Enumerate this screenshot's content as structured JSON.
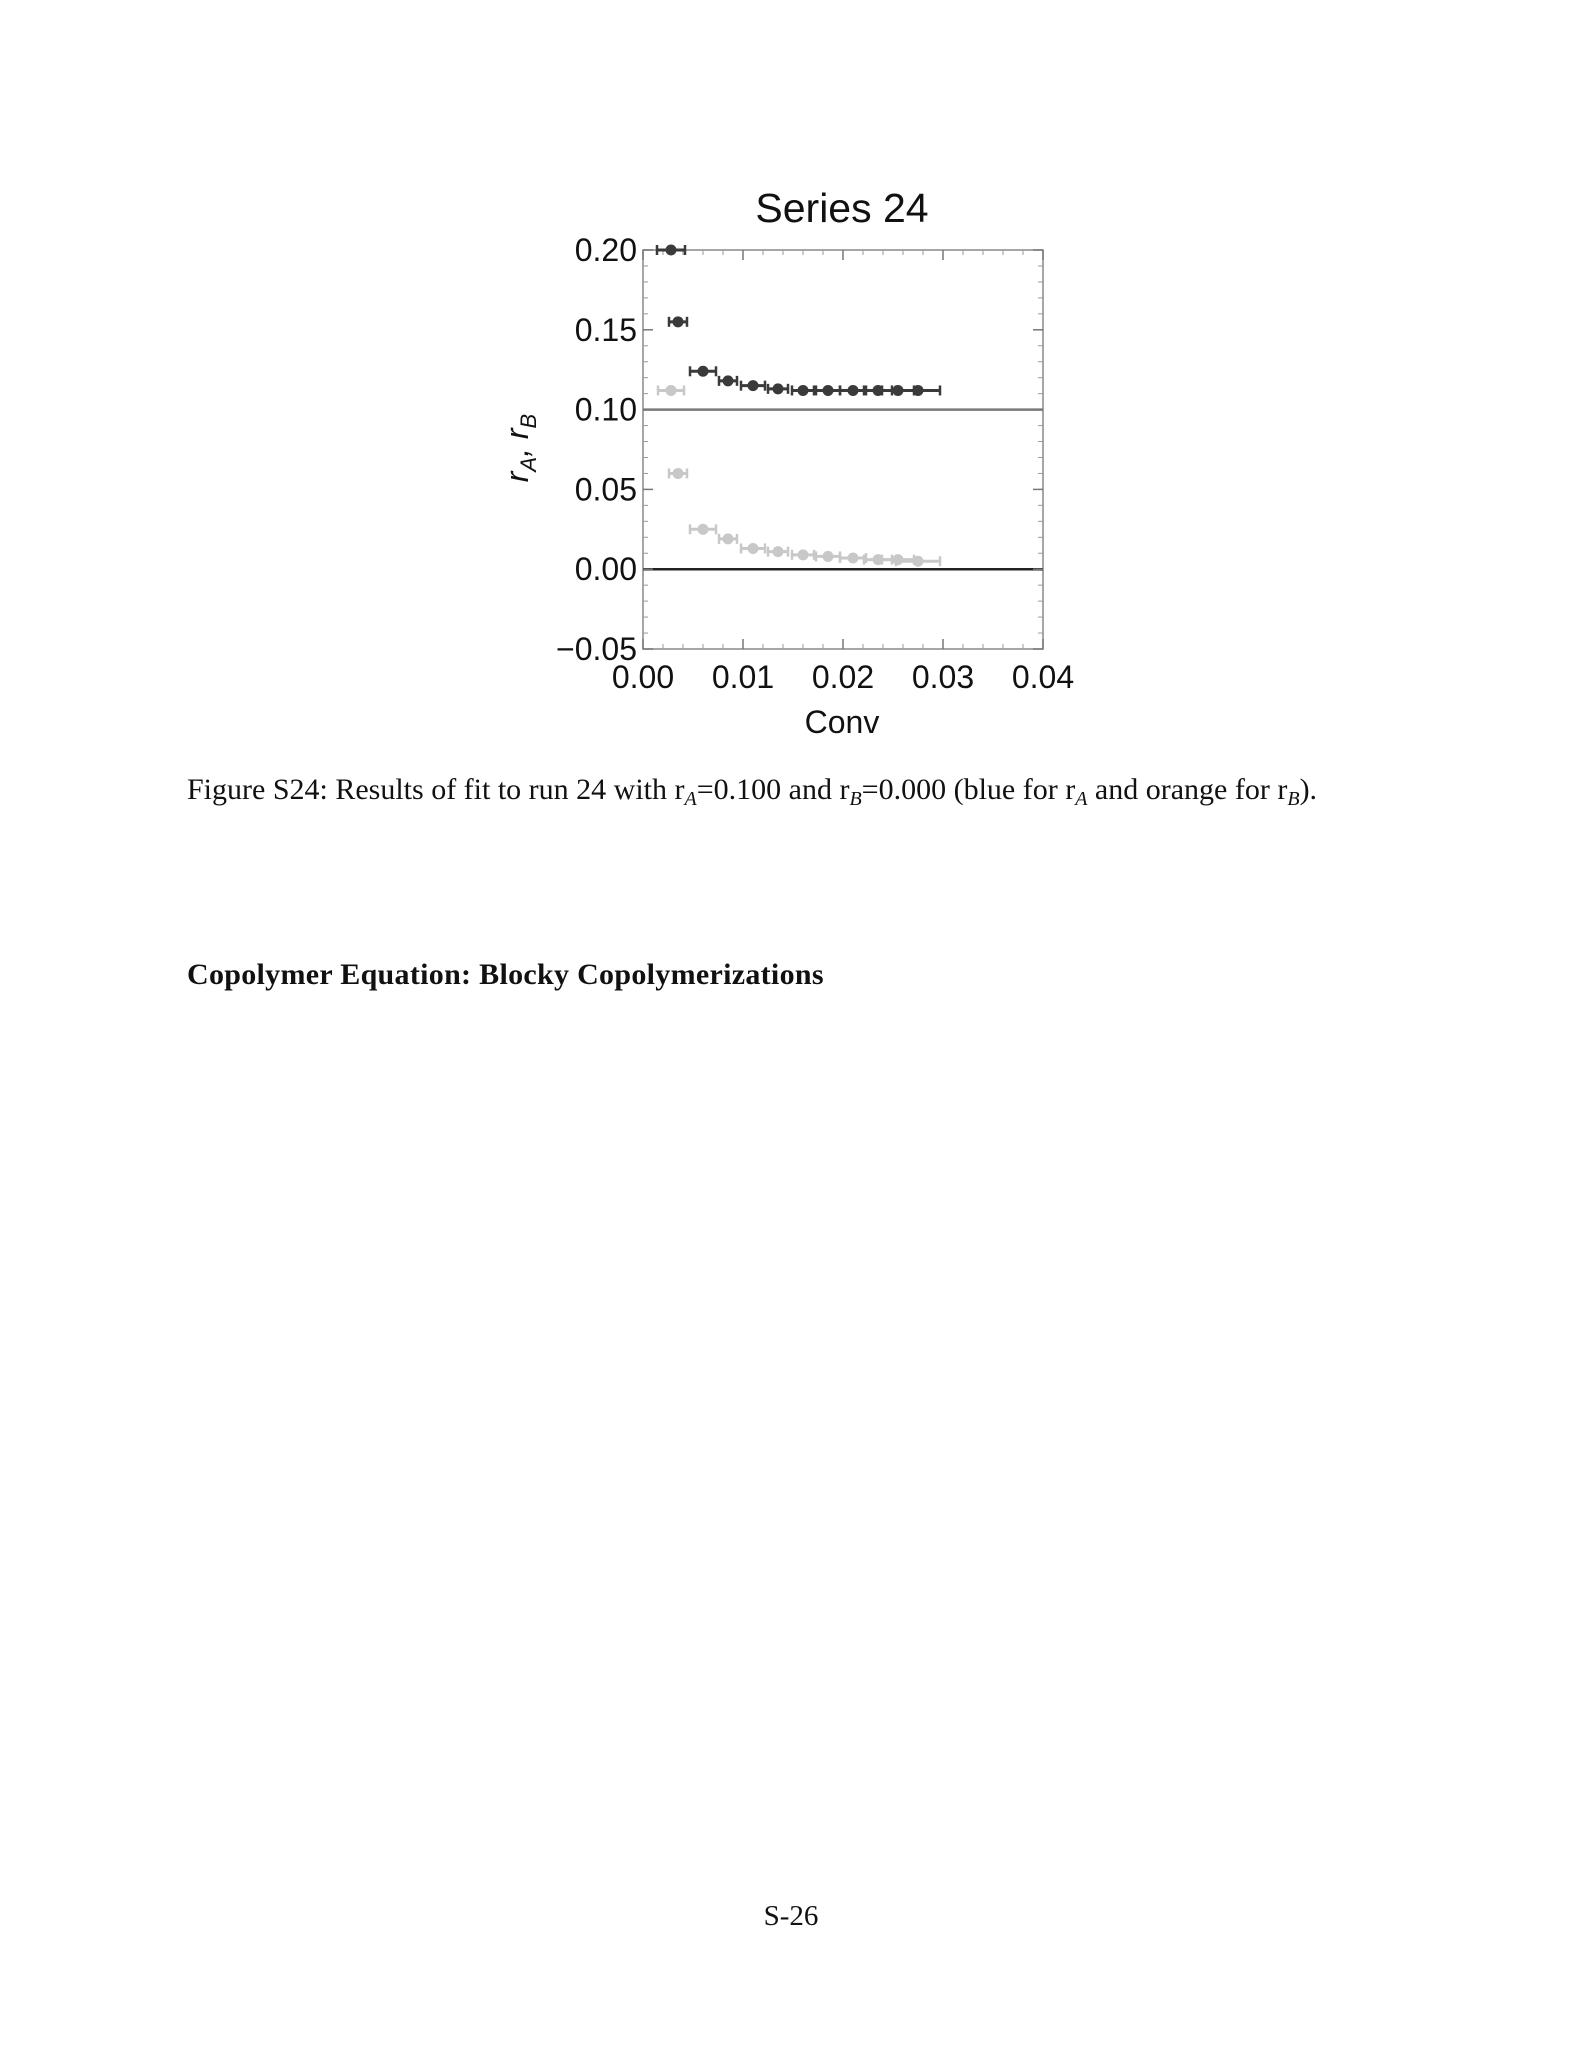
{
  "chart_data": {
    "type": "scatter",
    "title": "Series 24",
    "xlabel": "Conv",
    "ylabel_main": "r",
    "ylabel_sub_a": "A",
    "ylabel_sep": ", ",
    "ylabel_sub_b": "B",
    "xlim": [
      0.0,
      0.04
    ],
    "ylim": [
      -0.05,
      0.2
    ],
    "x_ticks": [
      "0.00",
      "0.01",
      "0.02",
      "0.03",
      "0.04"
    ],
    "y_ticks": [
      "0.20",
      "0.15",
      "0.10",
      "0.05",
      "0.00",
      "−0.05"
    ],
    "grid": false,
    "legend": "none",
    "reference_lines": [
      {
        "y": 0.1,
        "color": "#7a7a7a"
      },
      {
        "y": 0.0,
        "color": "#222222"
      }
    ],
    "series": [
      {
        "color": "#3a3a3a",
        "points": [
          {
            "x": 0.0028,
            "y": 0.2,
            "xerr": 0.0014
          },
          {
            "x": 0.0035,
            "y": 0.155,
            "xerr": 0.0009
          },
          {
            "x": 0.006,
            "y": 0.124,
            "xerr": 0.0013
          },
          {
            "x": 0.0085,
            "y": 0.118,
            "xerr": 0.0009
          },
          {
            "x": 0.011,
            "y": 0.115,
            "xerr": 0.0012
          },
          {
            "x": 0.0135,
            "y": 0.113,
            "xerr": 0.001
          },
          {
            "x": 0.016,
            "y": 0.112,
            "xerr": 0.0011
          },
          {
            "x": 0.0185,
            "y": 0.112,
            "xerr": 0.0012
          },
          {
            "x": 0.021,
            "y": 0.112,
            "xerr": 0.0013
          },
          {
            "x": 0.0235,
            "y": 0.112,
            "xerr": 0.0014
          },
          {
            "x": 0.0255,
            "y": 0.112,
            "xerr": 0.0016
          },
          {
            "x": 0.0275,
            "y": 0.112,
            "xerr": 0.0022
          }
        ]
      },
      {
        "color": "#c8c8c8",
        "points": [
          {
            "x": 0.0028,
            "y": 0.112,
            "xerr": 0.0013
          },
          {
            "x": 0.0035,
            "y": 0.06,
            "xerr": 0.0009
          },
          {
            "x": 0.006,
            "y": 0.025,
            "xerr": 0.0013
          },
          {
            "x": 0.0085,
            "y": 0.019,
            "xerr": 0.0009
          },
          {
            "x": 0.011,
            "y": 0.013,
            "xerr": 0.0012
          },
          {
            "x": 0.0135,
            "y": 0.011,
            "xerr": 0.001
          },
          {
            "x": 0.016,
            "y": 0.009,
            "xerr": 0.0011
          },
          {
            "x": 0.0185,
            "y": 0.008,
            "xerr": 0.0012
          },
          {
            "x": 0.021,
            "y": 0.007,
            "xerr": 0.0013
          },
          {
            "x": 0.0235,
            "y": 0.006,
            "xerr": 0.0014
          },
          {
            "x": 0.0255,
            "y": 0.006,
            "xerr": 0.0016
          },
          {
            "x": 0.0275,
            "y": 0.005,
            "xerr": 0.0022
          }
        ]
      }
    ]
  },
  "caption": {
    "prefix": "Figure S24: Results of fit to run 24 with r",
    "sub_a": "A",
    "mid1": "=0.100 and r",
    "sub_b": "B",
    "mid2": "=0.000 (blue for r",
    "sub_a2": "A",
    "mid3": " and orange for r",
    "sub_b2": "B",
    "suffix": ")."
  },
  "section_heading": "Copolymer Equation: Blocky Copolymerizations",
  "page_number": "S-26"
}
